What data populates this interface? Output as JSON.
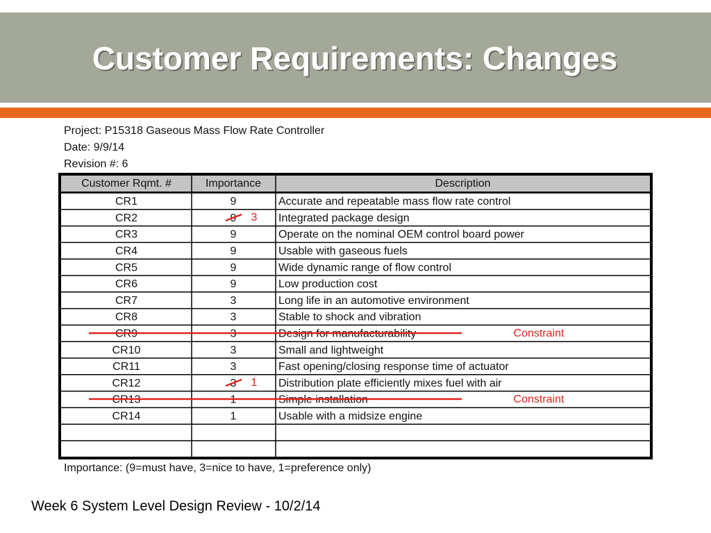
{
  "header": {
    "title": "Customer Requirements: Changes"
  },
  "project_info": [
    "Project: P15318 Gaseous Mass Flow Rate Controller",
    "Date: 9/9/14",
    "Revision #: 6"
  ],
  "table": {
    "columns": [
      "Customer Rqmt. #",
      "Importance",
      "Description"
    ],
    "rows": [
      [
        "CR1",
        "9",
        "Accurate and repeatable mass flow rate control"
      ],
      [
        "CR2",
        "9",
        "Integrated package design"
      ],
      [
        "CR3",
        "9",
        "Operate on the nominal OEM control board power"
      ],
      [
        "CR4",
        "9",
        "Usable with gaseous fuels"
      ],
      [
        "CR5",
        "9",
        "Wide dynamic range of flow control"
      ],
      [
        "CR6",
        "9",
        "Low production cost"
      ],
      [
        "CR7",
        "3",
        "Long life in an automotive environment"
      ],
      [
        "CR8",
        "3",
        "Stable to shock and vibration"
      ],
      [
        "CR9",
        "3",
        "Design for manufacturability"
      ],
      [
        "CR10",
        "3",
        "Small and lightweight"
      ],
      [
        "CR11",
        "3",
        "Fast opening/closing response time of actuator"
      ],
      [
        "CR12",
        "3",
        "Distribution plate efficiently mixes fuel with air"
      ],
      [
        "CR13",
        "1",
        "Simple installation"
      ],
      [
        "CR14",
        "1",
        "Usable with a midsize engine"
      ]
    ],
    "footnote": "Importance: (9=must have, 3=nice to have, 1=preference only)"
  },
  "annotations": {
    "cr2_new_importance": "3",
    "cr12_new_importance": "1",
    "cr9_note": "Constraint",
    "cr13_note": "Constraint"
  },
  "footer": "Week 6 System Level Design Review - 10/2/14"
}
